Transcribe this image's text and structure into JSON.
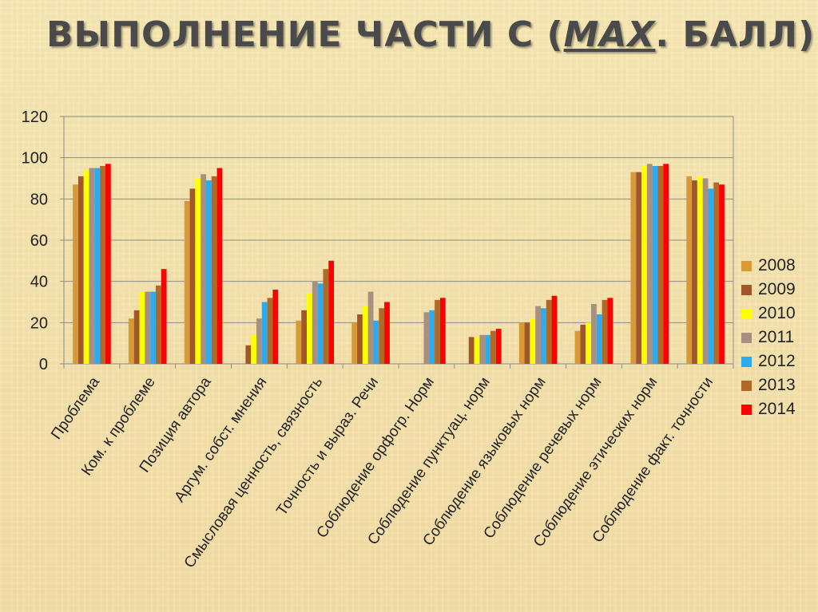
{
  "slide": {
    "title_prefix": "ВЫПОЛНЕНИЕ ЧАСТИ С (",
    "title_emph": "MAX",
    "title_suffix": ". БАЛЛ)"
  },
  "chart_data": {
    "type": "bar",
    "title": "",
    "xlabel": "",
    "ylabel": "",
    "ylim": [
      0,
      120
    ],
    "yticks": [
      0,
      20,
      40,
      60,
      80,
      100,
      120
    ],
    "grid": true,
    "legend_position": "right",
    "categories": [
      "Проблема",
      "Ком. к проблеме",
      "Позиция автора",
      "Аргум. собст. мнения",
      "Смысловая ценность, связность",
      "Точность и выраз. Речи",
      "Соблюдение орфогр. Норм",
      "Соблюдение пунктуац. норм",
      "Соблюдение языковых норм",
      "Соблюдение речевых норм",
      "Соблюдение этических норм",
      "Соблюдение факт. точности"
    ],
    "series": [
      {
        "name": "2008",
        "color": "#d89a36",
        "values": [
          87,
          22,
          79,
          0,
          21,
          20,
          0,
          0,
          20,
          16,
          93,
          91
        ]
      },
      {
        "name": "2009",
        "color": "#a0582a",
        "values": [
          91,
          26,
          85,
          9,
          26,
          24,
          0,
          13,
          20,
          19,
          93,
          89
        ]
      },
      {
        "name": "2010",
        "color": "#ffff00",
        "values": [
          94,
          35,
          90,
          14,
          34,
          28,
          0,
          13,
          22,
          20,
          96,
          91
        ]
      },
      {
        "name": "2011",
        "color": "#a89080",
        "values": [
          95,
          35,
          92,
          22,
          40,
          35,
          25,
          14,
          28,
          29,
          97,
          90
        ]
      },
      {
        "name": "2012",
        "color": "#2eaaef",
        "values": [
          95,
          35,
          89,
          30,
          39,
          21,
          26,
          14,
          27,
          24,
          96,
          85
        ]
      },
      {
        "name": "2013",
        "color": "#b06a28",
        "values": [
          96,
          38,
          91,
          32,
          46,
          27,
          31,
          16,
          31,
          31,
          96,
          88
        ]
      },
      {
        "name": "2014",
        "color": "#ff0000",
        "values": [
          97,
          46,
          95,
          36,
          50,
          30,
          32,
          17,
          33,
          32,
          97,
          87
        ]
      }
    ]
  }
}
